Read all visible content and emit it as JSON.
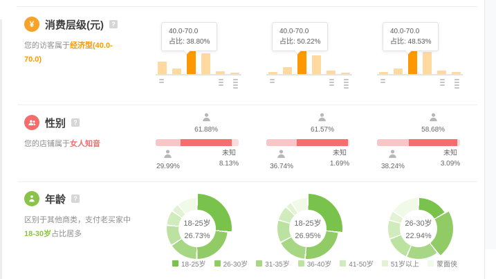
{
  "colors": {
    "orange_accent": "#ff9800",
    "bar_light": "#ffd9a0",
    "bar_highlight": "#ff9800",
    "red_accent": "#f56c6c",
    "gender_male": "#f8c6c6",
    "gender_female": "#f76c6c",
    "gender_unknown": "#fadcdc",
    "green_accent": "#8bc34a",
    "donut_palette": [
      "#79c24c",
      "#90cb66",
      "#a7d685",
      "#bce2a2",
      "#d0ebbc",
      "#e2f2d3",
      "#f1f9e9"
    ]
  },
  "consumption": {
    "title": "消费层级(元)",
    "help": "?",
    "desc_prefix": "您的访客属于",
    "desc_highlight": "经济型(40.0-70.0)",
    "tooltip_range": "40.0-70.0",
    "tooltip_label": "占比:",
    "highlight_index": 2,
    "charts": [
      {
        "value": "38.80%",
        "bars": [
          50,
          22,
          100,
          82,
          12,
          5
        ]
      },
      {
        "value": "50.22%",
        "bars": [
          8,
          28,
          100,
          74,
          14,
          6
        ]
      },
      {
        "value": "48.53%",
        "bars": [
          8,
          22,
          100,
          88,
          15,
          7
        ]
      }
    ]
  },
  "gender": {
    "title": "性别",
    "help": "?",
    "desc_prefix": "您的店铺属于",
    "desc_highlight": "女人知音",
    "unknown_label": "未知",
    "charts": [
      {
        "male": "29.99%",
        "female": "61.88%",
        "unknown": "8.13%"
      },
      {
        "male": "36.74%",
        "female": "61.57%",
        "unknown": "1.69%"
      },
      {
        "male": "38.24%",
        "female": "58.68%",
        "unknown": "3.09%"
      }
    ]
  },
  "age": {
    "title": "年龄",
    "help": "?",
    "desc_line1": "区别于其他商类，支付老买家中",
    "desc_highlight": "18-30岁",
    "desc_suffix": "占比居多",
    "donuts": [
      {
        "label": "18-25岁",
        "value": "26.73%",
        "slices": [
          26.73,
          23.5,
          15.5,
          11,
          8,
          4.5,
          10.77
        ],
        "highlight": 0
      },
      {
        "label": "18-25岁",
        "value": "26.95%",
        "slices": [
          26.95,
          24.5,
          16,
          12,
          8,
          3.5,
          9.05
        ],
        "highlight": 0
      },
      {
        "label": "26-30岁",
        "value": "22.94%",
        "slices": [
          16.5,
          22.94,
          17,
          13,
          10,
          5,
          15.56
        ],
        "highlight": 1
      }
    ],
    "legend": [
      "18-25岁",
      "26-30岁",
      "31-35岁",
      "36-40岁",
      "41-50岁",
      "51岁以上",
      "蒙面侠"
    ]
  }
}
